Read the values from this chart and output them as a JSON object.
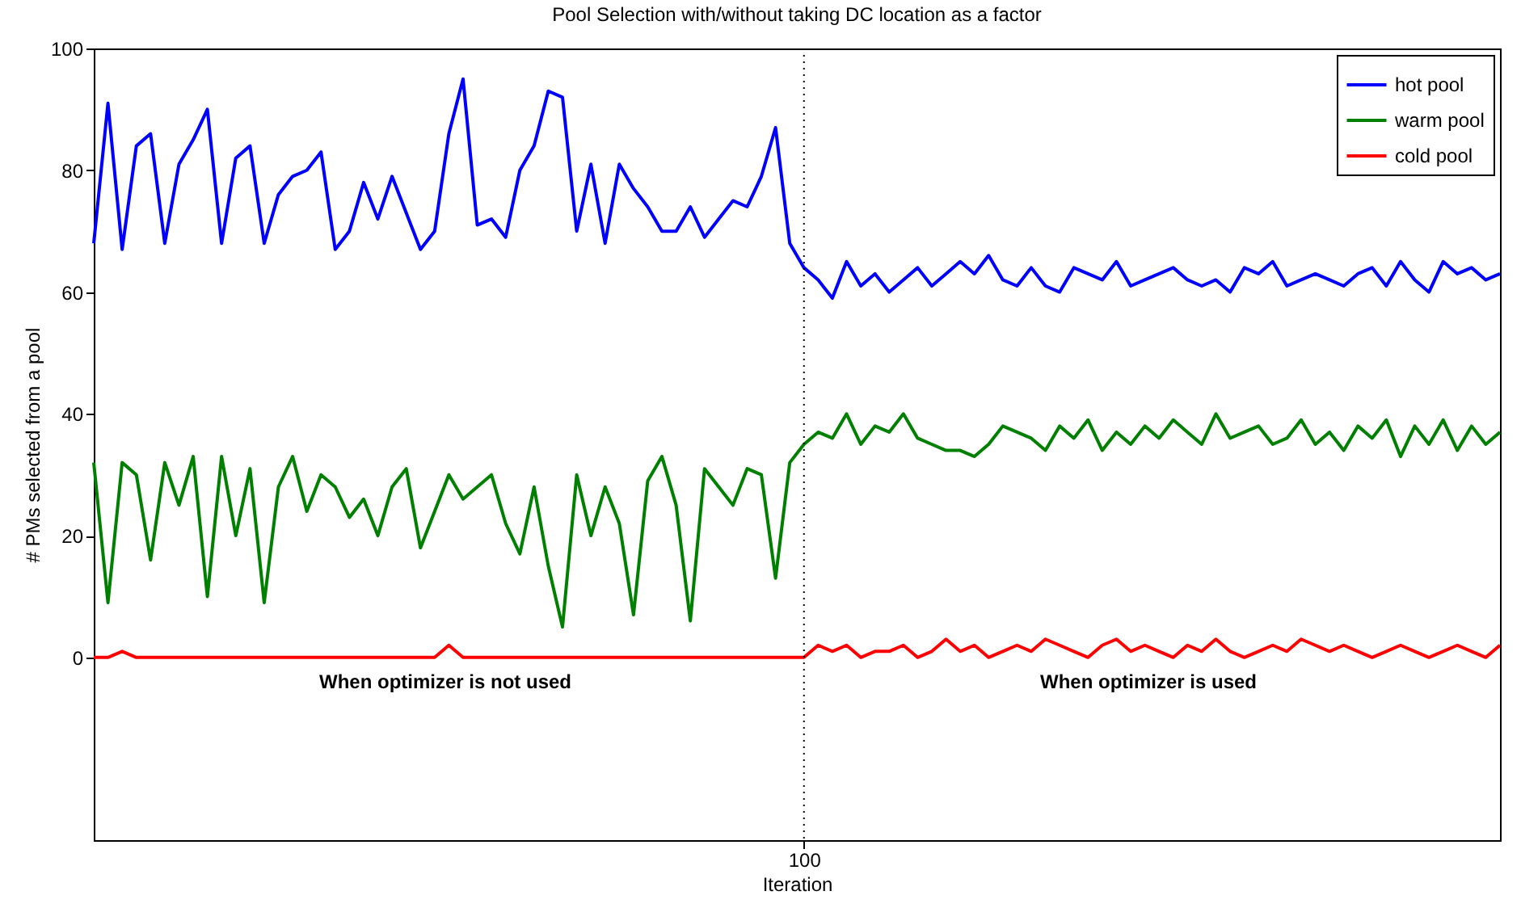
{
  "chart_data": {
    "type": "line",
    "title": "Pool Selection with/without taking DC location as a factor",
    "xlabel": "Iteration",
    "ylabel": "# PMs selected from a pool",
    "categories": [
      null,
      null,
      null,
      null,
      null,
      null,
      null,
      null,
      null,
      null,
      null,
      null,
      null,
      null,
      null,
      null,
      null,
      null,
      null,
      null,
      null,
      null,
      null,
      null,
      null,
      null,
      null,
      null,
      null,
      null,
      null,
      null,
      null,
      null,
      null,
      null,
      null,
      null,
      null,
      null,
      null,
      null,
      null,
      null,
      null,
      null,
      null,
      null,
      null,
      null,
      "100",
      null,
      null,
      null,
      null,
      null,
      null,
      null,
      null,
      null,
      null,
      null,
      null,
      null,
      null,
      null,
      null,
      null,
      null,
      null,
      null,
      null,
      null,
      null,
      null,
      null,
      null,
      null,
      null,
      null,
      null,
      null,
      null,
      null,
      null,
      null,
      null,
      null,
      null,
      null,
      null,
      null,
      null,
      null,
      null,
      null,
      null,
      null,
      null,
      null
    ],
    "series": [
      {
        "name": "hot pool",
        "color": "#0000ff",
        "values": [
          68,
          91,
          67,
          84,
          86,
          68,
          81,
          85,
          90,
          68,
          82,
          84,
          68,
          76,
          79,
          80,
          83,
          67,
          70,
          78,
          72,
          79,
          73,
          67,
          70,
          86,
          95,
          71,
          72,
          69,
          80,
          84,
          93,
          92,
          70,
          81,
          68,
          81,
          77,
          74,
          70,
          70,
          74,
          69,
          72,
          75,
          74,
          79,
          87,
          68,
          64,
          62,
          59,
          65,
          61,
          63,
          60,
          62,
          64,
          61,
          63,
          65,
          63,
          66,
          62,
          61,
          64,
          61,
          60,
          64,
          63,
          62,
          65,
          61,
          62,
          63,
          64,
          62,
          61,
          62,
          60,
          64,
          63,
          65,
          61,
          62,
          63,
          62,
          61,
          63,
          64,
          61,
          65,
          62,
          60,
          65,
          63,
          64,
          62,
          63
        ]
      },
      {
        "name": "warm pool",
        "color": "#008000",
        "values": [
          32,
          9,
          32,
          30,
          16,
          32,
          25,
          33,
          10,
          33,
          20,
          31,
          9,
          28,
          33,
          24,
          30,
          28,
          23,
          26,
          20,
          28,
          31,
          18,
          24,
          30,
          26,
          28,
          30,
          22,
          17,
          28,
          15,
          5,
          30,
          20,
          28,
          22,
          7,
          29,
          33,
          25,
          6,
          31,
          28,
          25,
          31,
          30,
          13,
          32,
          35,
          37,
          36,
          40,
          35,
          38,
          37,
          40,
          36,
          35,
          34,
          34,
          33,
          35,
          38,
          37,
          36,
          34,
          38,
          36,
          39,
          34,
          37,
          35,
          38,
          36,
          39,
          37,
          35,
          40,
          36,
          37,
          38,
          35,
          36,
          39,
          35,
          37,
          34,
          38,
          36,
          39,
          33,
          38,
          35,
          39,
          34,
          38,
          35,
          37
        ]
      },
      {
        "name": "cold pool",
        "color": "#ff0000",
        "values": [
          0,
          0,
          1,
          0,
          0,
          0,
          0,
          0,
          0,
          0,
          0,
          0,
          0,
          0,
          0,
          0,
          0,
          0,
          0,
          0,
          0,
          0,
          0,
          0,
          0,
          2,
          0,
          0,
          0,
          0,
          0,
          0,
          0,
          0,
          0,
          0,
          0,
          0,
          0,
          0,
          0,
          0,
          0,
          0,
          0,
          0,
          0,
          0,
          0,
          0,
          0,
          2,
          1,
          2,
          0,
          1,
          1,
          2,
          0,
          1,
          3,
          1,
          2,
          0,
          1,
          2,
          1,
          3,
          2,
          1,
          0,
          2,
          3,
          1,
          2,
          1,
          0,
          2,
          1,
          3,
          1,
          0,
          1,
          2,
          1,
          3,
          2,
          1,
          2,
          1,
          0,
          1,
          2,
          1,
          0,
          1,
          2,
          1,
          0,
          2
        ]
      }
    ],
    "ylim": [
      -30,
      100
    ],
    "yticks": [
      0,
      20,
      40,
      60,
      80,
      100
    ],
    "ref_lines": [
      {
        "axis": "x",
        "value": "100",
        "color": "#000000",
        "line_style": "dotted"
      }
    ],
    "annotations": [
      "When optimizer is not used",
      "When optimizer is used"
    ],
    "grid": false,
    "legend": "top right",
    "marker": "none",
    "line_style": "solid"
  }
}
